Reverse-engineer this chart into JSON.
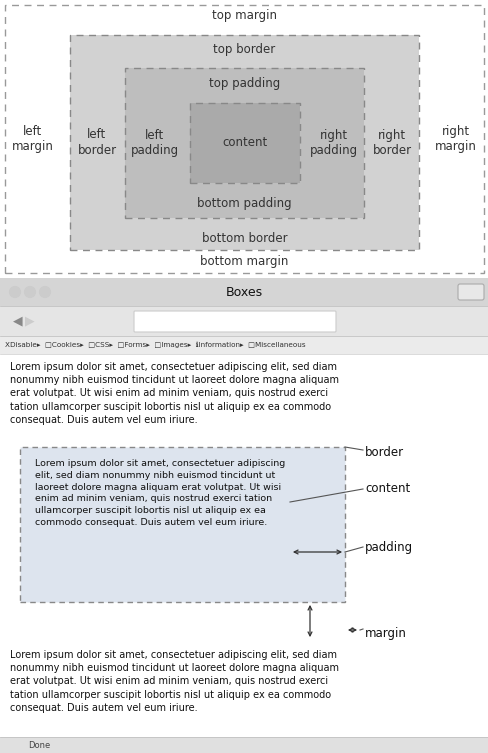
{
  "bg_color": "#ffffff",
  "top_panel": {
    "margin_fill": "#ffffff",
    "border_fill": "#d0d0d0",
    "padding_fill": "#c0c0c0",
    "content_fill": "#b0b0b0",
    "dash_style": [
      5,
      4
    ],
    "lw": 1.0,
    "labels": {
      "top_margin": "top margin",
      "bottom_margin": "bottom margin",
      "left_margin": "left\nmargin",
      "right_margin": "right\nmargin",
      "top_border": "top border",
      "bottom_border": "bottom border",
      "left_border": "left\nborder",
      "right_border": "right\nborder",
      "top_padding": "top padding",
      "bottom_padding": "bottom padding",
      "left_padding": "left\npadding",
      "right_padding": "right\npadding",
      "content": "content"
    },
    "font_size": 8.5
  },
  "bottom_panel": {
    "browser_title": "Boxes",
    "lorem_short": "Lorem ipsum dolor sit amet, consectetuer adipiscing elit, sed diam\nnonummy nibh euismod tincidunt ut laoreet dolore magna aliquam\nerat volutpat. Ut wisi enim ad minim veniam, quis nostrud exerci\ntation ullamcorper suscipit lobortis nisl ut aliquip ex ea commodo\nconsequat. Duis autem vel eum iriure.",
    "lorem_box": "Lorem ipsum dolor sit amet, consectetuer adipiscing\nelit, sed diam nonummy nibh euismod tincidunt ut\nlaoreet dolore magna aliquam erat volutpat. Ut wisi\nenim ad minim veniam, quis nostrud exerci tation\nullamcorper suscipit lobortis nisl ut aliquip ex ea\ncommodo consequat. Duis autem vel eum iriure.",
    "toolbar_text": "XDisable▸  □Cookies▸  □CSS▸  □Forms▸  □Images▸  ℹInformation▸  □Miscellaneous",
    "labels": [
      "border",
      "content",
      "padding",
      "margin"
    ],
    "font_size": 7.0,
    "status_bar": "Done"
  }
}
